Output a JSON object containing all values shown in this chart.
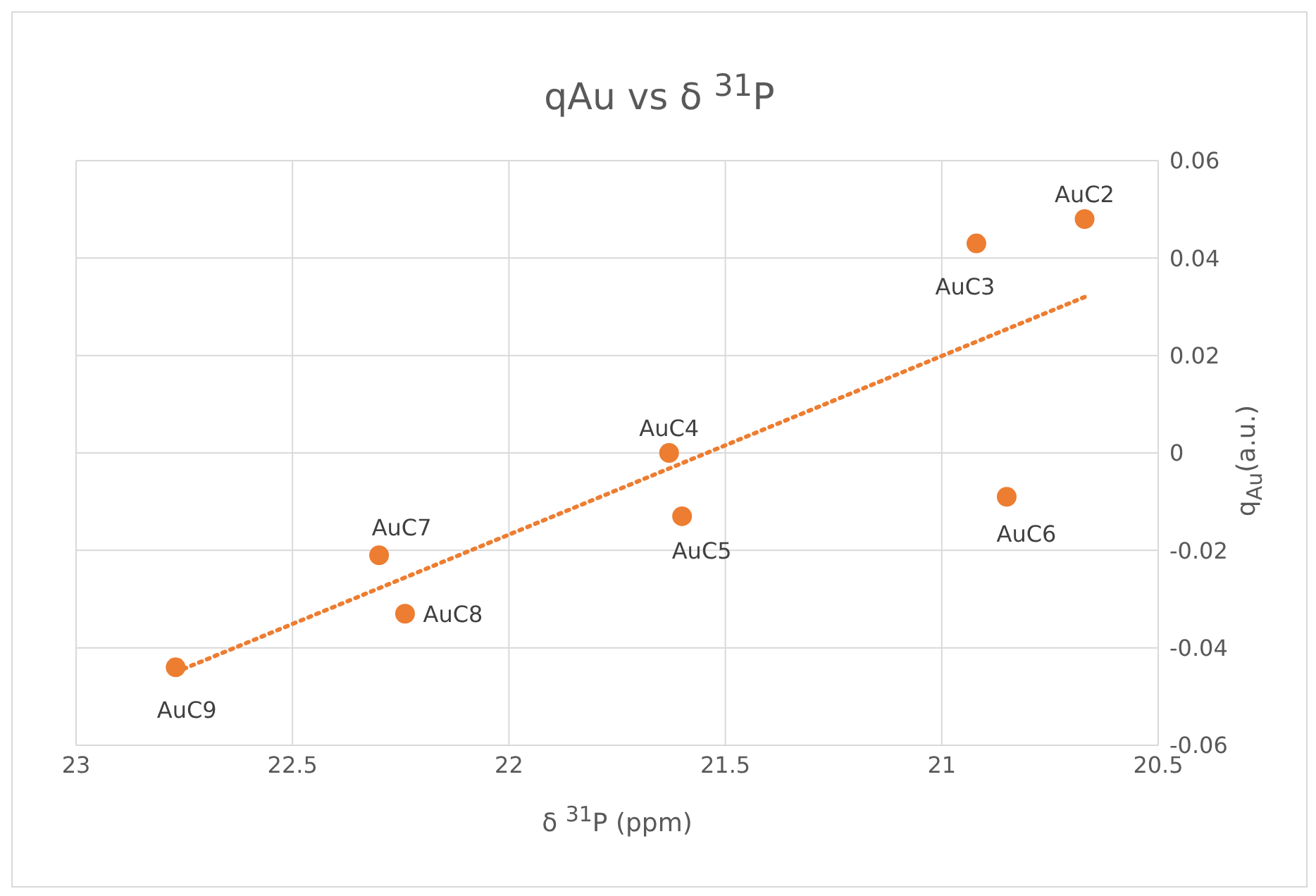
{
  "chart_data": {
    "type": "scatter",
    "title": "qAu vs δ $^{31}$P",
    "xlabel": "δ $^{31}$P (ppm)",
    "ylabel": "q$_{Au}$(a.u.)",
    "xlim": [
      23,
      20.5
    ],
    "xticks": [
      23,
      22.5,
      22,
      21.5,
      21,
      20.5
    ],
    "ylim": [
      -0.06,
      0.06
    ],
    "yticks": [
      -0.06,
      -0.04,
      -0.02,
      0,
      0.02,
      0.04,
      0.06
    ],
    "grid": true,
    "marker": "circle",
    "series": [
      {
        "color": "#ed7d31",
        "x": [
          20.67,
          20.92,
          21.63,
          21.6,
          20.85,
          22.3,
          22.24,
          22.77
        ],
        "values": [
          0.048,
          0.043,
          0,
          -0.013,
          -0.009,
          -0.021,
          -0.033,
          -0.044
        ],
        "value_labels": [
          "AuC2",
          "AuC3",
          "AuC4",
          "AuC5",
          "AuC6",
          "AuC7",
          "AuC8",
          "AuC9"
        ]
      },
      {
        "type": "line",
        "color": "#ed7d31",
        "line_style": "dotted",
        "marker": "none",
        "x": [
          22.77,
          20.67
        ],
        "values": [
          -0.045,
          0.032
        ]
      }
    ]
  }
}
